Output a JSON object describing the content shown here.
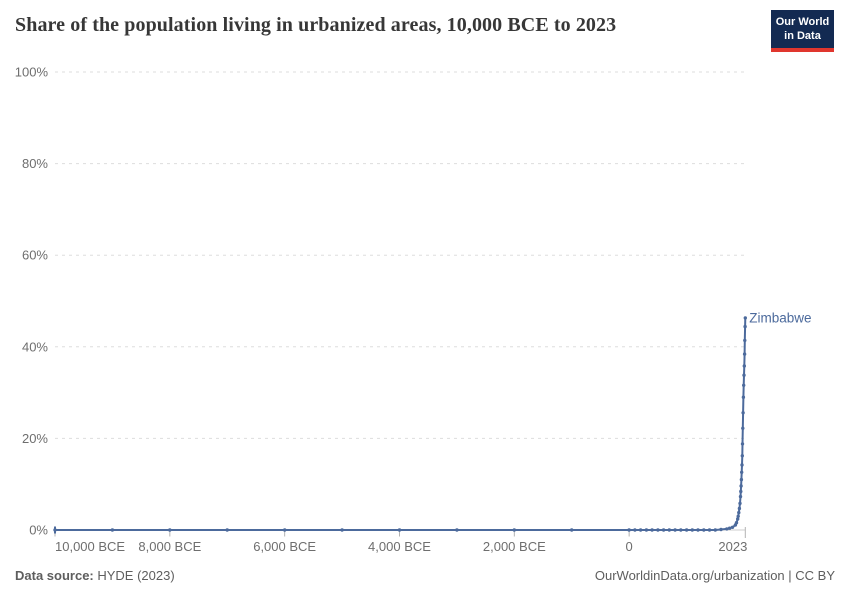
{
  "header": {
    "title": "Share of the population living in urbanized areas, 10,000 BCE to 2023",
    "logo": {
      "line1": "Our World",
      "line2": "in Data",
      "bg_color": "#132a52",
      "accent_color": "#e0362e"
    }
  },
  "chart_data": {
    "type": "line",
    "title": "Share of the population living in urbanized areas, 10,000 BCE to 2023",
    "xlabel": "",
    "ylabel": "",
    "xlim": [
      -10000,
      2023
    ],
    "ylim": [
      0,
      100
    ],
    "grid": "dashed-horizontal",
    "legend_position": "end-of-line-label",
    "x_ticks": [
      {
        "year": -10000,
        "label": "10,000 BCE",
        "align": "start"
      },
      {
        "year": -8000,
        "label": "8,000 BCE",
        "align": "middle"
      },
      {
        "year": -6000,
        "label": "6,000 BCE",
        "align": "middle"
      },
      {
        "year": -4000,
        "label": "4,000 BCE",
        "align": "middle"
      },
      {
        "year": -2000,
        "label": "2,000 BCE",
        "align": "middle"
      },
      {
        "year": 0,
        "label": "0",
        "align": "middle"
      },
      {
        "year": 2023,
        "label": "2023",
        "align": "end"
      }
    ],
    "y_ticks": [
      {
        "value": 0,
        "label": "0%"
      },
      {
        "value": 20,
        "label": "20%"
      },
      {
        "value": 40,
        "label": "40%"
      },
      {
        "value": 60,
        "label": "60%"
      },
      {
        "value": 80,
        "label": "80%"
      },
      {
        "value": 100,
        "label": "100%"
      }
    ],
    "series": [
      {
        "name": "Zimbabwe",
        "color": "#4c6a9c",
        "points": [
          [
            -10000,
            0
          ],
          [
            -9000,
            0
          ],
          [
            -8000,
            0
          ],
          [
            -7000,
            0
          ],
          [
            -6000,
            0
          ],
          [
            -5000,
            0
          ],
          [
            -4000,
            0
          ],
          [
            -3000,
            0
          ],
          [
            -2000,
            0
          ],
          [
            -1000,
            0
          ],
          [
            0,
            0
          ],
          [
            100,
            0
          ],
          [
            200,
            0
          ],
          [
            300,
            0
          ],
          [
            400,
            0
          ],
          [
            500,
            0
          ],
          [
            600,
            0
          ],
          [
            700,
            0
          ],
          [
            800,
            0
          ],
          [
            900,
            0
          ],
          [
            1000,
            0
          ],
          [
            1100,
            0
          ],
          [
            1200,
            0
          ],
          [
            1300,
            0
          ],
          [
            1400,
            0
          ],
          [
            1500,
            0
          ],
          [
            1600,
            0.1
          ],
          [
            1700,
            0.25
          ],
          [
            1750,
            0.4
          ],
          [
            1800,
            0.6
          ],
          [
            1850,
            1.1
          ],
          [
            1870,
            1.6
          ],
          [
            1890,
            2.4
          ],
          [
            1900,
            3.0
          ],
          [
            1910,
            3.8
          ],
          [
            1920,
            4.7
          ],
          [
            1930,
            5.8
          ],
          [
            1940,
            7.3
          ],
          [
            1945,
            8.4
          ],
          [
            1950,
            9.6
          ],
          [
            1955,
            11.0
          ],
          [
            1960,
            12.6
          ],
          [
            1965,
            14.2
          ],
          [
            1970,
            16.2
          ],
          [
            1975,
            18.8
          ],
          [
            1980,
            22.2
          ],
          [
            1985,
            25.6
          ],
          [
            1990,
            29.0
          ],
          [
            1995,
            31.6
          ],
          [
            2000,
            33.8
          ],
          [
            2005,
            35.8
          ],
          [
            2010,
            38.4
          ],
          [
            2015,
            41.4
          ],
          [
            2020,
            44.4
          ],
          [
            2023,
            46.3
          ]
        ]
      }
    ],
    "end_label": "Zimbabwe",
    "colors": {
      "grid": "#dddddd",
      "axis_line": "#cccccc",
      "tick_mark": "#b3b3b3",
      "tick_label": "#6e6e6e"
    }
  },
  "footer": {
    "source_label": "Data source:",
    "source_value": " HYDE (2023)",
    "right_text": "OurWorldinData.org/urbanization | CC BY"
  }
}
